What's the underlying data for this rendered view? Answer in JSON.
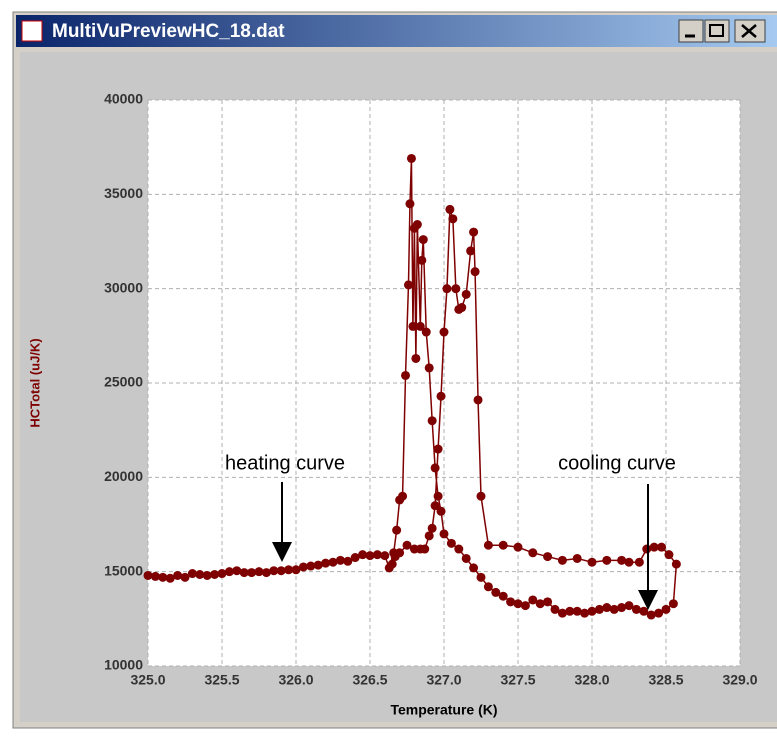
{
  "window": {
    "title": "MultiVuPreviewHC_18.dat"
  },
  "chart_data": {
    "type": "scatter-line",
    "xlabel": "Temperature (K)",
    "ylabel": "HCTotal (uJ/K)",
    "xlim": [
      325,
      329
    ],
    "ylim": [
      10000,
      40000
    ],
    "xticks": [
      {
        "value": 325,
        "label": "325.0"
      },
      {
        "value": 325.5,
        "label": "325.5"
      },
      {
        "value": 326,
        "label": "326.0"
      },
      {
        "value": 326.5,
        "label": "326.5"
      },
      {
        "value": 327,
        "label": "327.0"
      },
      {
        "value": 327.5,
        "label": "327.5"
      },
      {
        "value": 328,
        "label": "328.0"
      },
      {
        "value": 328.5,
        "label": "328.5"
      },
      {
        "value": 329,
        "label": "329.0"
      }
    ],
    "yticks": [
      10000,
      15000,
      20000,
      25000,
      30000,
      35000,
      40000
    ],
    "grid": true,
    "annotations": [
      "heating curve",
      "cooling curve"
    ],
    "series": [
      {
        "color": "#7f0000",
        "x": [
          325.0,
          325.05,
          325.1,
          325.15,
          325.2,
          325.25,
          325.3,
          325.35,
          325.4,
          325.45,
          325.5,
          325.55,
          325.6,
          325.65,
          325.7,
          325.75,
          325.8,
          325.85,
          325.9,
          325.95,
          326.0,
          326.05,
          326.1,
          326.15,
          326.2,
          326.25,
          326.3,
          326.35,
          326.4,
          326.45,
          326.5,
          326.55,
          326.6,
          326.63,
          326.66,
          326.68,
          326.7,
          326.72,
          326.74,
          326.76,
          326.77,
          326.78,
          326.79,
          326.8,
          326.81,
          326.82,
          326.84,
          326.85,
          326.86,
          326.88,
          326.9,
          326.92,
          326.94,
          326.96,
          326.98,
          327.0,
          327.05,
          327.1,
          327.15,
          327.2,
          327.25,
          327.3,
          327.35,
          327.4,
          327.45,
          327.5,
          327.55,
          327.6,
          327.65,
          327.7,
          327.75,
          327.8,
          327.85,
          327.9,
          327.95,
          328.0,
          328.05,
          328.1,
          328.15,
          328.2,
          328.25,
          328.3,
          328.35,
          328.4,
          328.45,
          328.5,
          328.55,
          328.57,
          328.52,
          328.47,
          328.42,
          328.37,
          328.32,
          328.25,
          328.2,
          328.1,
          328.0,
          327.9,
          327.8,
          327.7,
          327.6,
          327.5,
          327.4,
          327.3,
          327.25,
          327.23,
          327.21,
          327.2,
          327.18,
          327.15,
          327.12,
          327.1,
          327.08,
          327.06,
          327.04,
          327.02,
          327.0,
          326.98,
          326.96,
          326.94,
          326.92,
          326.9,
          326.87,
          326.84,
          326.8,
          326.75,
          326.7,
          326.67,
          326.65
        ],
        "values": [
          14800,
          14750,
          14700,
          14650,
          14800,
          14700,
          14900,
          14850,
          14800,
          14850,
          14900,
          15000,
          15050,
          14950,
          14950,
          15000,
          14950,
          15050,
          15050,
          15100,
          15100,
          15250,
          15300,
          15350,
          15450,
          15500,
          15600,
          15550,
          15750,
          15900,
          15850,
          15900,
          15850,
          15200,
          16000,
          17200,
          18800,
          19000,
          25400,
          30200,
          34500,
          36900,
          28000,
          33200,
          26300,
          33400,
          28000,
          31500,
          32600,
          27700,
          25800,
          23000,
          20500,
          19000,
          18200,
          17000,
          16500,
          16200,
          15700,
          15200,
          14700,
          14200,
          13900,
          13700,
          13400,
          13300,
          13200,
          13500,
          13300,
          13400,
          13000,
          12800,
          12900,
          12900,
          12800,
          12900,
          13000,
          13100,
          13000,
          13100,
          13200,
          13000,
          12900,
          12700,
          12800,
          13000,
          13300,
          15400,
          15900,
          16300,
          16300,
          16200,
          15500,
          15500,
          15600,
          15600,
          15500,
          15700,
          15600,
          15800,
          16000,
          16300,
          16400,
          16400,
          19000,
          24100,
          30900,
          33000,
          32000,
          29700,
          29000,
          28900,
          30000,
          33700,
          34200,
          30000,
          27700,
          24300,
          21500,
          18500,
          17300,
          16900,
          16200,
          16200,
          16200,
          16400,
          16000,
          15800,
          15400
        ]
      }
    ]
  }
}
